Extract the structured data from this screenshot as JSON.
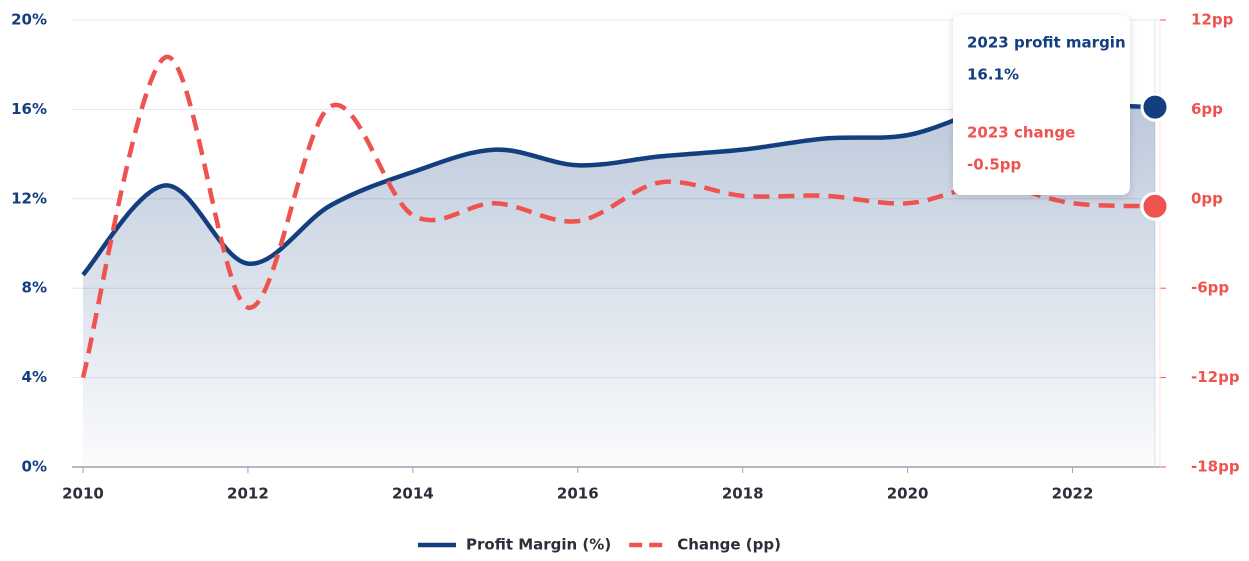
{
  "chart_data": {
    "type": "line",
    "x": [
      2010,
      2011,
      2012,
      2013,
      2014,
      2015,
      2016,
      2017,
      2018,
      2019,
      2020,
      2021,
      2022,
      2023
    ],
    "xlim": [
      2010,
      2023
    ],
    "xticks": [
      2010,
      2012,
      2014,
      2016,
      2018,
      2020,
      2022
    ],
    "ylim": [
      0,
      20
    ],
    "yticks": [
      {
        "value": 0,
        "label": "0%"
      },
      {
        "value": 4,
        "label": "4%"
      },
      {
        "value": 8,
        "label": "8%"
      },
      {
        "value": 12,
        "label": "12%"
      },
      {
        "value": 16,
        "label": "16%"
      },
      {
        "value": 20,
        "label": "20%"
      }
    ],
    "y2lim": [
      -18,
      12
    ],
    "y2ticks": [
      {
        "value": -18,
        "label": "-18pp"
      },
      {
        "value": -12,
        "label": "-12pp"
      },
      {
        "value": -6,
        "label": "-6pp"
      },
      {
        "value": 0,
        "label": "0pp"
      },
      {
        "value": 6,
        "label": "6pp"
      },
      {
        "value": 12,
        "label": "12pp"
      }
    ],
    "grid": true,
    "series": [
      {
        "name": "Profit Margin (%)",
        "color": "#133f7f",
        "style": "solid",
        "area": true,
        "values": [
          8.6,
          12.6,
          9.1,
          11.7,
          13.2,
          14.2,
          13.5,
          13.9,
          14.2,
          14.7,
          14.85,
          16.0,
          16.2,
          16.1
        ]
      },
      {
        "name": "Change (pp)",
        "color": "#ef5350",
        "style": "dashed",
        "axis": "y2",
        "values": [
          -12.0,
          9.5,
          -7.3,
          6.2,
          -1.1,
          -0.3,
          -1.5,
          1.1,
          0.2,
          0.2,
          -0.3,
          0.9,
          -0.3,
          -0.5
        ]
      }
    ],
    "tooltip": [
      {
        "label": "2023 profit margin",
        "value_label": "16.1%"
      },
      {
        "label": "2023 change",
        "value_label": "-0.5pp"
      }
    ]
  }
}
